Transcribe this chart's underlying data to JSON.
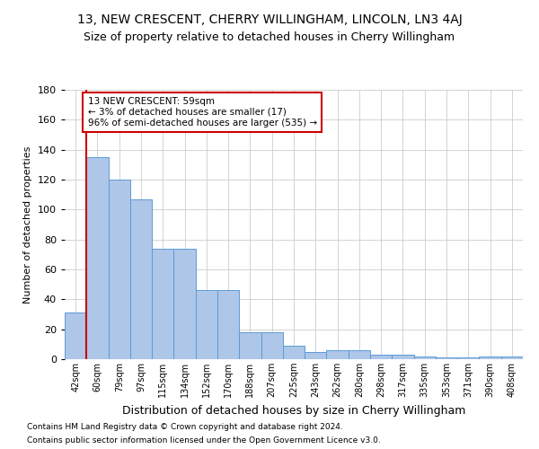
{
  "title": "13, NEW CRESCENT, CHERRY WILLINGHAM, LINCOLN, LN3 4AJ",
  "subtitle": "Size of property relative to detached houses in Cherry Willingham",
  "xlabel": "Distribution of detached houses by size in Cherry Willingham",
  "ylabel": "Number of detached properties",
  "footnote1": "Contains HM Land Registry data © Crown copyright and database right 2024.",
  "footnote2": "Contains public sector information licensed under the Open Government Licence v3.0.",
  "categories": [
    "42sqm",
    "60sqm",
    "79sqm",
    "97sqm",
    "115sqm",
    "134sqm",
    "152sqm",
    "170sqm",
    "188sqm",
    "207sqm",
    "225sqm",
    "243sqm",
    "262sqm",
    "280sqm",
    "298sqm",
    "317sqm",
    "335sqm",
    "353sqm",
    "371sqm",
    "390sqm",
    "408sqm"
  ],
  "values": [
    31,
    135,
    120,
    107,
    74,
    74,
    46,
    46,
    18,
    18,
    9,
    5,
    6,
    6,
    3,
    3,
    2,
    1,
    1,
    2,
    2
  ],
  "bar_color": "#aec6e8",
  "bar_edge_color": "#5b9bd5",
  "ylim": [
    0,
    180
  ],
  "yticks": [
    0,
    20,
    40,
    60,
    80,
    100,
    120,
    140,
    160,
    180
  ],
  "marker_line_color": "#cc0000",
  "annotation_line1": "13 NEW CRESCENT: 59sqm",
  "annotation_line2": "← 3% of detached houses are smaller (17)",
  "annotation_line3": "96% of semi-detached houses are larger (535) →",
  "annotation_box_color": "#ffffff",
  "annotation_box_edge_color": "#cc0000",
  "background_color": "#ffffff",
  "grid_color": "#cccccc",
  "title_fontsize": 10,
  "subtitle_fontsize": 9,
  "footnote_fontsize": 6.5,
  "ylabel_fontsize": 8,
  "xlabel_fontsize": 9,
  "tick_fontsize": 7,
  "annot_fontsize": 7.5
}
